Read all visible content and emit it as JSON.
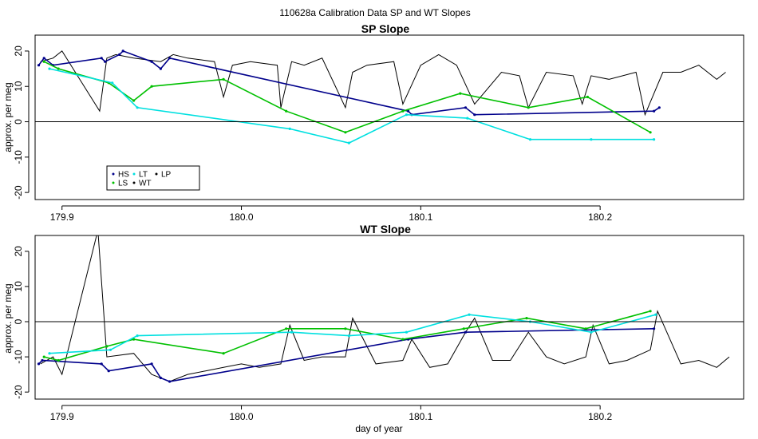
{
  "figure": {
    "title": "110628a   Calibration Data SP and WT Slopes",
    "xlabel": "day of year"
  },
  "chart_data": [
    {
      "type": "line",
      "title": "SP Slope",
      "xlabel": "",
      "ylabel": "approx. per meg",
      "xlim": [
        179.885,
        180.28
      ],
      "ylim": [
        -22,
        24.5
      ],
      "xticks": [
        179.9,
        180.0,
        180.1,
        180.2
      ],
      "xtick_labels": [
        "179.9",
        "180.0",
        "180.1",
        "180.2"
      ],
      "yticks": [
        -20,
        -10,
        0,
        10,
        20
      ],
      "ytick_labels": [
        "-20",
        "-10",
        "0",
        "10",
        "20"
      ],
      "hline": 0,
      "grid": false,
      "legend": {
        "position": "bottom-left",
        "entries": [
          {
            "label": "HS",
            "color": "#00008b"
          },
          {
            "label": "LS",
            "color": "#00c000"
          },
          {
            "label": "LT",
            "color": "#00e0e0"
          },
          {
            "label": "WT",
            "color": "#000000"
          },
          {
            "label": "LP",
            "color": "#000000"
          }
        ]
      },
      "series": [
        {
          "name": "WT",
          "color": "#000000",
          "x": [
            179.888,
            179.895,
            179.9,
            179.921,
            179.925,
            179.93,
            179.94,
            179.955,
            179.962,
            179.97,
            179.985,
            179.99,
            179.995,
            180.005,
            180.02,
            180.022,
            180.028,
            180.035,
            180.045,
            180.058,
            180.062,
            180.07,
            180.085,
            180.09,
            180.1,
            180.11,
            180.12,
            180.13,
            180.145,
            180.155,
            180.16,
            180.17,
            180.185,
            180.19,
            180.195,
            180.205,
            180.22,
            180.225,
            180.235,
            180.245,
            180.255,
            180.265,
            180.27
          ],
          "y": [
            17,
            18,
            20,
            3,
            18,
            19,
            18,
            17,
            19,
            18,
            17,
            7,
            16,
            17,
            16,
            4,
            17,
            16,
            18,
            4,
            14,
            16,
            17,
            5,
            16,
            19,
            16,
            5,
            14,
            13,
            4,
            14,
            13,
            5,
            13,
            12,
            14,
            2,
            14,
            14,
            16,
            12,
            14
          ]
        },
        {
          "name": "HS",
          "color": "#00008b",
          "x": [
            179.887,
            179.89,
            179.895,
            179.922,
            179.924,
            179.932,
            179.934,
            179.95,
            179.955,
            179.96,
            180.093,
            180.095,
            180.125,
            180.13,
            180.23,
            180.233
          ],
          "y": [
            16,
            18,
            16,
            18,
            17,
            19,
            20,
            17,
            15,
            18,
            3,
            2,
            4,
            2,
            3,
            4
          ]
        },
        {
          "name": "LS",
          "color": "#00c000",
          "x": [
            179.89,
            179.898,
            179.926,
            179.94,
            179.95,
            179.99,
            180.025,
            180.058,
            180.09,
            180.122,
            180.16,
            180.193,
            180.228
          ],
          "y": [
            17,
            15,
            11,
            6,
            10,
            12,
            3,
            -3,
            3,
            8,
            4,
            7,
            -3
          ]
        },
        {
          "name": "LT",
          "color": "#00e0e0",
          "x": [
            179.893,
            179.928,
            179.942,
            180.027,
            180.06,
            180.092,
            180.126,
            180.161,
            180.195,
            180.23
          ],
          "y": [
            15,
            11,
            4,
            -2,
            -6,
            2,
            1,
            -5,
            -5,
            -5
          ]
        }
      ]
    },
    {
      "type": "line",
      "title": "WT Slope",
      "xlabel": "day of year",
      "ylabel": "approx. per meg",
      "xlim": [
        179.885,
        180.28
      ],
      "ylim": [
        -22,
        24.5
      ],
      "xticks": [
        179.9,
        180.0,
        180.1,
        180.2
      ],
      "xtick_labels": [
        "179.9",
        "180.0",
        "180.1",
        "180.2"
      ],
      "yticks": [
        -20,
        -10,
        0,
        10,
        20
      ],
      "ytick_labels": [
        "-20",
        "-10",
        "0",
        "10",
        "20"
      ],
      "hline": 0,
      "grid": false,
      "legend": null,
      "series": [
        {
          "name": "WT",
          "color": "#000000",
          "x": [
            179.888,
            179.895,
            179.9,
            179.92,
            179.925,
            179.94,
            179.95,
            179.96,
            179.97,
            179.98,
            179.99,
            180.0,
            180.01,
            180.022,
            180.027,
            180.035,
            180.045,
            180.058,
            180.062,
            180.075,
            180.09,
            180.095,
            180.105,
            180.115,
            180.125,
            180.13,
            180.14,
            180.15,
            180.16,
            180.17,
            180.18,
            180.192,
            180.196,
            180.205,
            180.215,
            180.228,
            180.232,
            180.245,
            180.255,
            180.265,
            180.272
          ],
          "y": [
            -12,
            -10,
            -15,
            26,
            -10,
            -9,
            -15,
            -17,
            -15,
            -14,
            -13,
            -12,
            -13,
            -12,
            -1,
            -11,
            -10,
            -10,
            1,
            -12,
            -11,
            -5,
            -13,
            -12,
            -3,
            1,
            -11,
            -11,
            -3,
            -10,
            -12,
            -10,
            -1,
            -12,
            -11,
            -8,
            3,
            -12,
            -11,
            -13,
            -10
          ]
        },
        {
          "name": "HS",
          "color": "#00008b",
          "x": [
            179.887,
            179.889,
            179.922,
            179.926,
            179.95,
            179.955,
            179.96,
            180.093,
            180.125,
            180.23
          ],
          "y": [
            -12,
            -11,
            -12,
            -14,
            -12,
            -16,
            -17,
            -5,
            -3,
            -2
          ]
        },
        {
          "name": "LS",
          "color": "#00c000",
          "x": [
            179.89,
            179.898,
            179.925,
            179.94,
            179.99,
            180.025,
            180.058,
            180.09,
            180.124,
            180.159,
            180.192,
            180.228
          ],
          "y": [
            -10,
            -11,
            -7,
            -5,
            -9,
            -2,
            -2,
            -5,
            -2,
            1,
            -2,
            3
          ]
        },
        {
          "name": "LT",
          "color": "#00e0e0",
          "x": [
            179.893,
            179.927,
            179.942,
            180.028,
            180.06,
            180.092,
            180.127,
            180.161,
            180.195,
            180.231
          ],
          "y": [
            -9,
            -8,
            -4,
            -3,
            -4,
            -3,
            2,
            0,
            -3,
            2
          ]
        }
      ]
    }
  ]
}
